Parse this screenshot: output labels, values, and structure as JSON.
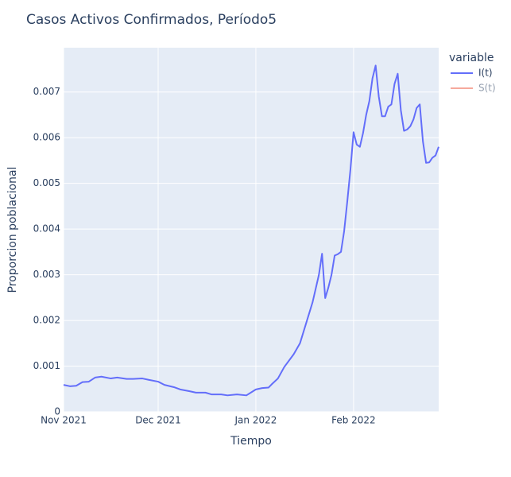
{
  "chart_data": {
    "type": "line",
    "title": "Casos Activos Confirmados, Período5",
    "x_label": "Tiempo",
    "y_label": "Proporcion poblacional",
    "legend_title": "variable",
    "legend_position": "right",
    "grid": true,
    "x": [
      0,
      2,
      4,
      6,
      8,
      10,
      12,
      15,
      17,
      20,
      22,
      25,
      27,
      30,
      32,
      35,
      37,
      40,
      42,
      45,
      47,
      50,
      52,
      55,
      58,
      61,
      63,
      65,
      66,
      68,
      70,
      73,
      75,
      77,
      79,
      80,
      81,
      82,
      83,
      84,
      85,
      86,
      87,
      88,
      89,
      90,
      91,
      92,
      93,
      94,
      95,
      96,
      97,
      98,
      99,
      100,
      101,
      102,
      103,
      104,
      105,
      106,
      107,
      108,
      109,
      110,
      111,
      112,
      113,
      114,
      115,
      116,
      117,
      118,
      119
    ],
    "xlim": [
      0,
      119
    ],
    "xticks": [
      {
        "value": 0,
        "label": "Nov 2021"
      },
      {
        "value": 30,
        "label": "Dec 2021"
      },
      {
        "value": 61,
        "label": "Jan 2022"
      },
      {
        "value": 92,
        "label": "Feb 2022"
      }
    ],
    "ylim": [
      0,
      0.00797
    ],
    "yticks": [
      0,
      0.001,
      0.002,
      0.003,
      0.004,
      0.005,
      0.006,
      0.007
    ],
    "series": [
      {
        "name": "I(t)",
        "color": "#636efa",
        "values": [
          0.00059,
          0.00056,
          0.00057,
          0.00065,
          0.00066,
          0.00075,
          0.00077,
          0.00073,
          0.00075,
          0.00072,
          0.00072,
          0.00073,
          0.0007,
          0.00066,
          0.00059,
          0.00054,
          0.00049,
          0.00045,
          0.00042,
          0.00042,
          0.00038,
          0.00038,
          0.00036,
          0.00038,
          0.00036,
          0.00049,
          0.00052,
          0.00053,
          0.0006,
          0.00073,
          0.00098,
          0.00126,
          0.0015,
          0.00195,
          0.0024,
          0.0027,
          0.003,
          0.00346,
          0.00249,
          0.00272,
          0.003,
          0.00342,
          0.00345,
          0.0035,
          0.00395,
          0.0046,
          0.0053,
          0.00612,
          0.00585,
          0.0058,
          0.0061,
          0.0065,
          0.0068,
          0.0073,
          0.00758,
          0.0069,
          0.00647,
          0.00647,
          0.00668,
          0.00673,
          0.00718,
          0.0074,
          0.0066,
          0.00615,
          0.00618,
          0.00625,
          0.0064,
          0.00665,
          0.00673,
          0.00592,
          0.00545,
          0.00546,
          0.00556,
          0.00561,
          0.0058
        ]
      },
      {
        "name": "S(t)",
        "color": "#ef553b",
        "visible": "legendonly"
      }
    ]
  }
}
